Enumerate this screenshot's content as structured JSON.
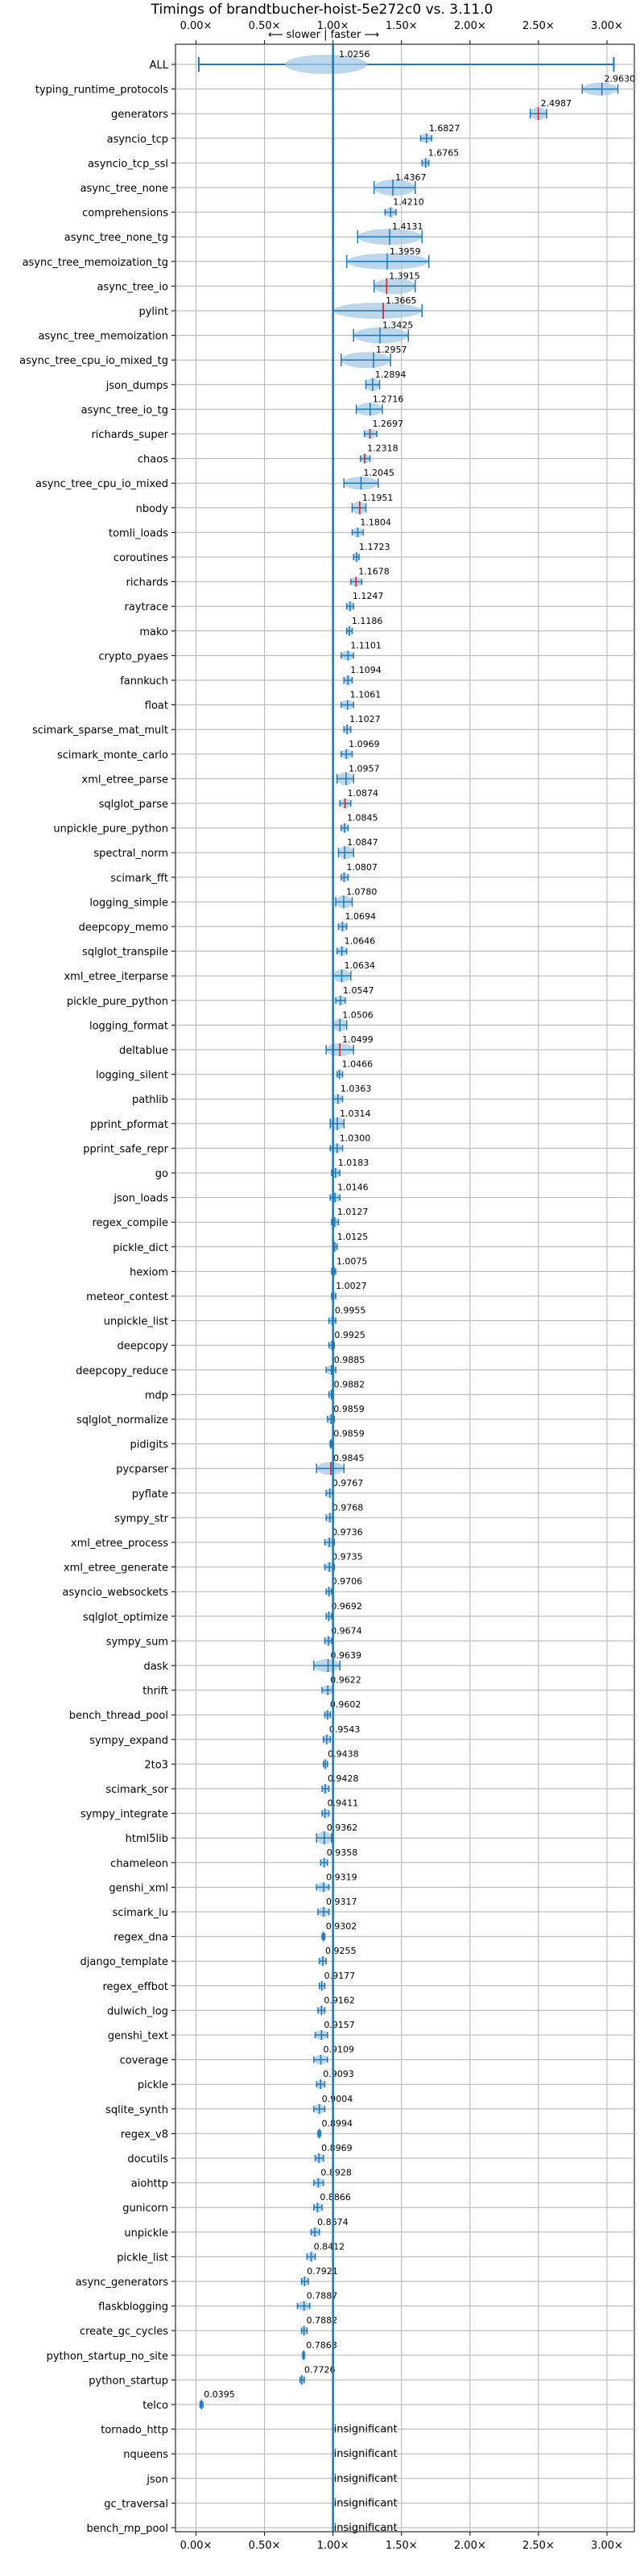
{
  "chart_data": {
    "type": "violin",
    "title": "Timings of brandtbucher-hoist-5e272c0 vs. 3.11.0",
    "direction_label": "⟵ slower | faster ⟶",
    "x_ticks": [
      "0.00×",
      "0.50×",
      "1.00×",
      "1.50×",
      "2.00×",
      "2.50×",
      "3.00×"
    ],
    "xlim": [
      -0.15,
      3.2
    ],
    "reference_line": 1.0,
    "insignificant_text": "insignificant",
    "benchmarks": [
      {
        "name": "ALL",
        "value": 1.0256,
        "lo": 0.02,
        "hi": 3.05
      },
      {
        "name": "typing_runtime_protocols",
        "value": 2.963,
        "lo": 2.82,
        "hi": 3.08
      },
      {
        "name": "generators",
        "value": 2.4987,
        "lo": 2.44,
        "hi": 2.56
      },
      {
        "name": "asyncio_tcp",
        "value": 1.6827,
        "lo": 1.64,
        "hi": 1.72
      },
      {
        "name": "asyncio_tcp_ssl",
        "value": 1.6765,
        "lo": 1.65,
        "hi": 1.7
      },
      {
        "name": "async_tree_none",
        "value": 1.4367,
        "lo": 1.3,
        "hi": 1.6
      },
      {
        "name": "comprehensions",
        "value": 1.421,
        "lo": 1.38,
        "hi": 1.46
      },
      {
        "name": "async_tree_none_tg",
        "value": 1.4131,
        "lo": 1.18,
        "hi": 1.65
      },
      {
        "name": "async_tree_memoization_tg",
        "value": 1.3959,
        "lo": 1.1,
        "hi": 1.7
      },
      {
        "name": "async_tree_io",
        "value": 1.3915,
        "lo": 1.3,
        "hi": 1.6
      },
      {
        "name": "pylint",
        "value": 1.3665,
        "lo": 1.0,
        "hi": 1.65
      },
      {
        "name": "async_tree_memoization",
        "value": 1.3425,
        "lo": 1.15,
        "hi": 1.55
      },
      {
        "name": "async_tree_cpu_io_mixed_tg",
        "value": 1.2957,
        "lo": 1.06,
        "hi": 1.42
      },
      {
        "name": "json_dumps",
        "value": 1.2894,
        "lo": 1.24,
        "hi": 1.34
      },
      {
        "name": "async_tree_io_tg",
        "value": 1.2716,
        "lo": 1.17,
        "hi": 1.36
      },
      {
        "name": "richards_super",
        "value": 1.2697,
        "lo": 1.23,
        "hi": 1.32
      },
      {
        "name": "chaos",
        "value": 1.2318,
        "lo": 1.2,
        "hi": 1.27
      },
      {
        "name": "async_tree_cpu_io_mixed",
        "value": 1.2045,
        "lo": 1.08,
        "hi": 1.33
      },
      {
        "name": "nbody",
        "value": 1.1951,
        "lo": 1.14,
        "hi": 1.24
      },
      {
        "name": "tomli_loads",
        "value": 1.1804,
        "lo": 1.14,
        "hi": 1.22
      },
      {
        "name": "coroutines",
        "value": 1.1723,
        "lo": 1.15,
        "hi": 1.19
      },
      {
        "name": "richards",
        "value": 1.1678,
        "lo": 1.13,
        "hi": 1.21
      },
      {
        "name": "raytrace",
        "value": 1.1247,
        "lo": 1.1,
        "hi": 1.15
      },
      {
        "name": "mako",
        "value": 1.1186,
        "lo": 1.1,
        "hi": 1.14
      },
      {
        "name": "crypto_pyaes",
        "value": 1.1101,
        "lo": 1.06,
        "hi": 1.15
      },
      {
        "name": "fannkuch",
        "value": 1.1094,
        "lo": 1.08,
        "hi": 1.14
      },
      {
        "name": "float",
        "value": 1.1061,
        "lo": 1.06,
        "hi": 1.15
      },
      {
        "name": "scimark_sparse_mat_mult",
        "value": 1.1027,
        "lo": 1.08,
        "hi": 1.13
      },
      {
        "name": "scimark_monte_carlo",
        "value": 1.0969,
        "lo": 1.06,
        "hi": 1.14
      },
      {
        "name": "xml_etree_parse",
        "value": 1.0957,
        "lo": 1.03,
        "hi": 1.15
      },
      {
        "name": "sqlglot_parse",
        "value": 1.0874,
        "lo": 1.05,
        "hi": 1.13
      },
      {
        "name": "unpickle_pure_python",
        "value": 1.0845,
        "lo": 1.06,
        "hi": 1.11
      },
      {
        "name": "spectral_norm",
        "value": 1.0847,
        "lo": 1.04,
        "hi": 1.15
      },
      {
        "name": "scimark_fft",
        "value": 1.0807,
        "lo": 1.06,
        "hi": 1.11
      },
      {
        "name": "logging_simple",
        "value": 1.078,
        "lo": 1.02,
        "hi": 1.14
      },
      {
        "name": "deepcopy_memo",
        "value": 1.0694,
        "lo": 1.04,
        "hi": 1.1
      },
      {
        "name": "sqlglot_transpile",
        "value": 1.0646,
        "lo": 1.03,
        "hi": 1.1
      },
      {
        "name": "xml_etree_iterparse",
        "value": 1.0634,
        "lo": 1.0,
        "hi": 1.13
      },
      {
        "name": "pickle_pure_python",
        "value": 1.0547,
        "lo": 1.02,
        "hi": 1.09
      },
      {
        "name": "logging_format",
        "value": 1.0506,
        "lo": 1.0,
        "hi": 1.1
      },
      {
        "name": "deltablue",
        "value": 1.0499,
        "lo": 0.95,
        "hi": 1.15
      },
      {
        "name": "logging_silent",
        "value": 1.0466,
        "lo": 1.03,
        "hi": 1.07
      },
      {
        "name": "pathlib",
        "value": 1.0363,
        "lo": 1.0,
        "hi": 1.07
      },
      {
        "name": "pprint_pformat",
        "value": 1.0314,
        "lo": 0.98,
        "hi": 1.08
      },
      {
        "name": "pprint_safe_repr",
        "value": 1.03,
        "lo": 0.98,
        "hi": 1.07
      },
      {
        "name": "go",
        "value": 1.0183,
        "lo": 0.99,
        "hi": 1.05
      },
      {
        "name": "json_loads",
        "value": 1.0146,
        "lo": 0.98,
        "hi": 1.05
      },
      {
        "name": "regex_compile",
        "value": 1.0127,
        "lo": 0.99,
        "hi": 1.04
      },
      {
        "name": "pickle_dict",
        "value": 1.0125,
        "lo": 1.0,
        "hi": 1.03
      },
      {
        "name": "hexiom",
        "value": 1.0075,
        "lo": 0.99,
        "hi": 1.02
      },
      {
        "name": "meteor_contest",
        "value": 1.0027,
        "lo": 0.99,
        "hi": 1.02
      },
      {
        "name": "unpickle_list",
        "value": 0.9955,
        "lo": 0.97,
        "hi": 1.02
      },
      {
        "name": "deepcopy",
        "value": 0.9925,
        "lo": 0.97,
        "hi": 1.01
      },
      {
        "name": "deepcopy_reduce",
        "value": 0.9885,
        "lo": 0.95,
        "hi": 1.02
      },
      {
        "name": "mdp",
        "value": 0.9882,
        "lo": 0.97,
        "hi": 1.0
      },
      {
        "name": "sqlglot_normalize",
        "value": 0.9859,
        "lo": 0.96,
        "hi": 1.01
      },
      {
        "name": "pidigits",
        "value": 0.9859,
        "lo": 0.98,
        "hi": 0.99
      },
      {
        "name": "pycparser",
        "value": 0.9845,
        "lo": 0.88,
        "hi": 1.08
      },
      {
        "name": "pyflate",
        "value": 0.9767,
        "lo": 0.95,
        "hi": 1.0
      },
      {
        "name": "sympy_str",
        "value": 0.9768,
        "lo": 0.95,
        "hi": 1.0
      },
      {
        "name": "xml_etree_process",
        "value": 0.9736,
        "lo": 0.94,
        "hi": 1.01
      },
      {
        "name": "xml_etree_generate",
        "value": 0.9735,
        "lo": 0.94,
        "hi": 1.01
      },
      {
        "name": "asyncio_websockets",
        "value": 0.9706,
        "lo": 0.95,
        "hi": 0.99
      },
      {
        "name": "sqlglot_optimize",
        "value": 0.9692,
        "lo": 0.95,
        "hi": 0.99
      },
      {
        "name": "sympy_sum",
        "value": 0.9674,
        "lo": 0.94,
        "hi": 0.99
      },
      {
        "name": "dask",
        "value": 0.9639,
        "lo": 0.86,
        "hi": 1.05
      },
      {
        "name": "thrift",
        "value": 0.9622,
        "lo": 0.92,
        "hi": 1.0
      },
      {
        "name": "bench_thread_pool",
        "value": 0.9602,
        "lo": 0.94,
        "hi": 0.98
      },
      {
        "name": "sympy_expand",
        "value": 0.9543,
        "lo": 0.93,
        "hi": 0.98
      },
      {
        "name": "2to3",
        "value": 0.9438,
        "lo": 0.93,
        "hi": 0.96
      },
      {
        "name": "scimark_sor",
        "value": 0.9428,
        "lo": 0.92,
        "hi": 0.97
      },
      {
        "name": "sympy_integrate",
        "value": 0.9411,
        "lo": 0.92,
        "hi": 0.97
      },
      {
        "name": "html5lib",
        "value": 0.9362,
        "lo": 0.88,
        "hi": 0.99
      },
      {
        "name": "chameleon",
        "value": 0.9358,
        "lo": 0.91,
        "hi": 0.96
      },
      {
        "name": "genshi_xml",
        "value": 0.9319,
        "lo": 0.88,
        "hi": 0.97
      },
      {
        "name": "scimark_lu",
        "value": 0.9317,
        "lo": 0.89,
        "hi": 0.97
      },
      {
        "name": "regex_dna",
        "value": 0.9302,
        "lo": 0.92,
        "hi": 0.94
      },
      {
        "name": "django_template",
        "value": 0.9255,
        "lo": 0.9,
        "hi": 0.95
      },
      {
        "name": "regex_effbot",
        "value": 0.9177,
        "lo": 0.9,
        "hi": 0.94
      },
      {
        "name": "dulwich_log",
        "value": 0.9162,
        "lo": 0.89,
        "hi": 0.94
      },
      {
        "name": "genshi_text",
        "value": 0.9157,
        "lo": 0.87,
        "hi": 0.96
      },
      {
        "name": "coverage",
        "value": 0.9109,
        "lo": 0.86,
        "hi": 0.96
      },
      {
        "name": "pickle",
        "value": 0.9093,
        "lo": 0.88,
        "hi": 0.94
      },
      {
        "name": "sqlite_synth",
        "value": 0.9004,
        "lo": 0.86,
        "hi": 0.94
      },
      {
        "name": "regex_v8",
        "value": 0.8994,
        "lo": 0.89,
        "hi": 0.91
      },
      {
        "name": "docutils",
        "value": 0.8969,
        "lo": 0.87,
        "hi": 0.93
      },
      {
        "name": "aiohttp",
        "value": 0.8928,
        "lo": 0.86,
        "hi": 0.93
      },
      {
        "name": "gunicorn",
        "value": 0.8866,
        "lo": 0.86,
        "hi": 0.92
      },
      {
        "name": "unpickle",
        "value": 0.8674,
        "lo": 0.84,
        "hi": 0.9
      },
      {
        "name": "pickle_list",
        "value": 0.8412,
        "lo": 0.81,
        "hi": 0.87
      },
      {
        "name": "async_generators",
        "value": 0.7921,
        "lo": 0.77,
        "hi": 0.82
      },
      {
        "name": "flaskblogging",
        "value": 0.7887,
        "lo": 0.74,
        "hi": 0.83
      },
      {
        "name": "create_gc_cycles",
        "value": 0.7882,
        "lo": 0.77,
        "hi": 0.81
      },
      {
        "name": "python_startup_no_site",
        "value": 0.7863,
        "lo": 0.78,
        "hi": 0.79
      },
      {
        "name": "python_startup",
        "value": 0.7726,
        "lo": 0.76,
        "hi": 0.79
      },
      {
        "name": "telco",
        "value": 0.0395,
        "lo": 0.03,
        "hi": 0.05
      },
      {
        "name": "tornado_http",
        "value": null
      },
      {
        "name": "nqueens",
        "value": null
      },
      {
        "name": "json",
        "value": null
      },
      {
        "name": "gc_traversal",
        "value": null
      },
      {
        "name": "bench_mp_pool",
        "value": null
      }
    ],
    "highlighted": [
      "generators",
      "async_tree_io",
      "pylint",
      "richards_super",
      "chaos",
      "nbody",
      "richards",
      "sqlglot_parse",
      "deltablue",
      "pycparser"
    ],
    "colors": {
      "violin": "#1f77b4",
      "violin_fill": "#a6c8e6",
      "value_mark": "#d62728",
      "grid": "#b0b0b0",
      "reference_line": "#1f77b4",
      "text": "#000000"
    }
  }
}
